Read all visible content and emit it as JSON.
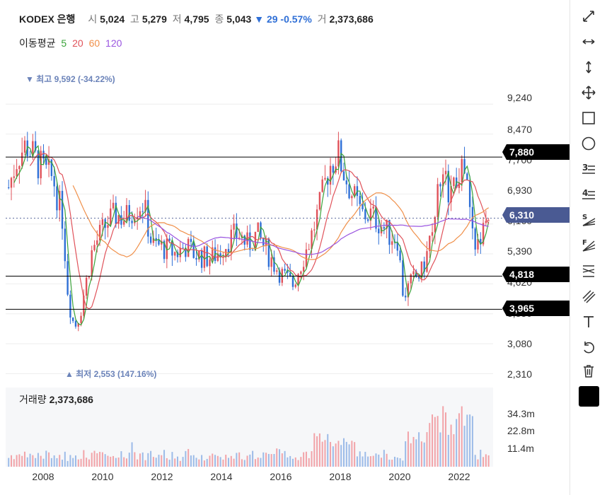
{
  "header": {
    "name": "KODEX 은행",
    "open_label": "시",
    "open": "5,024",
    "high_label": "고",
    "high": "5,279",
    "low_label": "저",
    "low": "4,795",
    "close_label": "종",
    "close": "5,043",
    "change_arrow": "▼",
    "change": "29",
    "change_pct": "-0.57%",
    "vol_label": "거",
    "volume": "2,373,686"
  },
  "moving_average": {
    "label": "이동평균",
    "periods": [
      {
        "text": "5",
        "color": "#3aa33a"
      },
      {
        "text": "20",
        "color": "#e0525a"
      },
      {
        "text": "60",
        "color": "#f0904a"
      },
      {
        "text": "120",
        "color": "#9a55e0"
      }
    ]
  },
  "extremes": {
    "max": "▼ 최고 9,592 (-34.22%)",
    "min": "▲ 최저 2,553 (147.16%)"
  },
  "y_ticks": [
    "9,240",
    "8,470",
    "7,700",
    "6,930",
    "6,160",
    "5,390",
    "4,620",
    "3,850",
    "3,080",
    "2,310"
  ],
  "x_ticks": [
    "2008",
    "2010",
    "2012",
    "2014",
    "2016",
    "2018",
    "2020",
    "2022"
  ],
  "price_tags": [
    {
      "text": "7,880",
      "style": "black"
    },
    {
      "text": "6,310",
      "style": "blue"
    },
    {
      "text": "4,818",
      "style": "black"
    },
    {
      "text": "3,965",
      "style": "black"
    }
  ],
  "volume_panel": {
    "label": "거래량",
    "value": "2,373,686",
    "ticks": [
      "34.3m",
      "22.8m",
      "11.4m"
    ]
  },
  "colors": {
    "up": "#e0525a",
    "down": "#2f6fd6",
    "tag_current": "#4a5a93"
  },
  "toolbar": [
    {
      "name": "expand-diagonal-icon"
    },
    {
      "name": "expand-horizontal-icon"
    },
    {
      "name": "expand-vertical-icon"
    },
    {
      "name": "move-icon"
    },
    {
      "name": "rectangle-icon"
    },
    {
      "name": "circle-icon"
    },
    {
      "name": "fib-retracement-3-icon"
    },
    {
      "name": "fib-extension-4-icon"
    },
    {
      "name": "speed-line-s-icon"
    },
    {
      "name": "fan-line-f-icon"
    },
    {
      "name": "gann-lines-icon"
    },
    {
      "name": "parallel-lines-icon"
    },
    {
      "name": "text-icon"
    },
    {
      "name": "undo-icon"
    },
    {
      "name": "trash-icon"
    },
    {
      "name": "color-swatch"
    }
  ],
  "chart_data": {
    "type": "candlestick",
    "title": "KODEX 은행",
    "x_range": [
      2006.9,
      2023.2
    ],
    "y_range": [
      2100,
      10100
    ],
    "series_price_close": [
      [
        2007.0,
        7100
      ],
      [
        2007.3,
        7900
      ],
      [
        2007.6,
        8200
      ],
      [
        2007.9,
        7800
      ],
      [
        2008.2,
        7500
      ],
      [
        2008.5,
        7300
      ],
      [
        2008.8,
        6300
      ],
      [
        2009.0,
        4200
      ],
      [
        2009.2,
        3500
      ],
      [
        2009.4,
        3900
      ],
      [
        2009.6,
        4700
      ],
      [
        2009.8,
        5500
      ],
      [
        2010.0,
        5800
      ],
      [
        2010.3,
        6200
      ],
      [
        2010.6,
        6400
      ],
      [
        2010.9,
        6300
      ],
      [
        2011.2,
        6600
      ],
      [
        2011.5,
        6700
      ],
      [
        2011.8,
        5600
      ],
      [
        2012.0,
        5600
      ],
      [
        2012.3,
        5500
      ],
      [
        2012.6,
        5400
      ],
      [
        2012.9,
        5600
      ],
      [
        2013.2,
        5400
      ],
      [
        2013.5,
        5300
      ],
      [
        2013.8,
        5300
      ],
      [
        2014.1,
        5500
      ],
      [
        2014.4,
        5800
      ],
      [
        2014.7,
        5900
      ],
      [
        2015.0,
        5600
      ],
      [
        2015.3,
        5900
      ],
      [
        2015.6,
        5500
      ],
      [
        2015.9,
        5100
      ],
      [
        2016.2,
        4800
      ],
      [
        2016.5,
        4600
      ],
      [
        2016.8,
        5200
      ],
      [
        2017.1,
        5800
      ],
      [
        2017.4,
        6600
      ],
      [
        2017.7,
        7600
      ],
      [
        2018.0,
        8000
      ],
      [
        2018.2,
        7500
      ],
      [
        2018.5,
        6900
      ],
      [
        2018.8,
        6400
      ],
      [
        2019.1,
        6400
      ],
      [
        2019.4,
        6200
      ],
      [
        2019.7,
        5900
      ],
      [
        2020.0,
        5800
      ],
      [
        2020.2,
        4300
      ],
      [
        2020.5,
        4700
      ],
      [
        2020.8,
        4900
      ],
      [
        2021.0,
        5400
      ],
      [
        2021.3,
        6900
      ],
      [
        2021.6,
        7200
      ],
      [
        2021.9,
        7000
      ],
      [
        2022.1,
        7600
      ],
      [
        2022.3,
        7300
      ],
      [
        2022.5,
        5900
      ],
      [
        2022.7,
        5500
      ],
      [
        2022.9,
        6700
      ],
      [
        2023.1,
        6310
      ]
    ],
    "series": [
      {
        "name": "5",
        "color": "#3aa33a"
      },
      {
        "name": "20",
        "color": "#e0525a"
      },
      {
        "name": "60",
        "color": "#f0904a"
      },
      {
        "name": "120",
        "color": "#9a55e0"
      }
    ],
    "horizontal_lines": [
      7880,
      4818,
      3965
    ],
    "current_price": 6310,
    "max": 9592,
    "min": 2553
  }
}
